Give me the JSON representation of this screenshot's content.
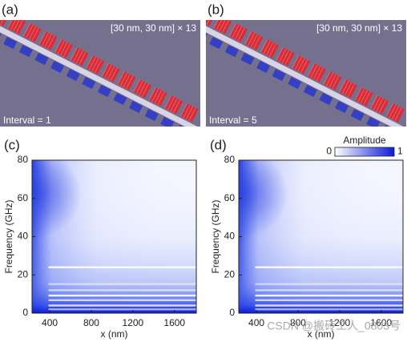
{
  "panels": [
    {
      "label": "(a)",
      "annotation": "[30 nm, 30 nm] × 13",
      "caption": "Interval = 1"
    },
    {
      "label": "(b)",
      "annotation": "[30 nm, 30 nm] × 13",
      "caption": "Interval = 5"
    }
  ],
  "chart_data": [
    {
      "type": "heatmap",
      "label": "(c)",
      "x_label": "x (nm)",
      "y_label": "Frequency (GHz)",
      "xlim": [
        230,
        1810
      ],
      "xticks": [
        400,
        800,
        1200,
        1600
      ],
      "ylim": [
        0,
        80
      ],
      "yticks": [
        0,
        20,
        40,
        60,
        80
      ]
    },
    {
      "type": "heatmap",
      "label": "(d)",
      "x_label": "x (nm)",
      "y_label": "Frequency (GHz)",
      "xlim": [
        230,
        1810
      ],
      "xticks": [
        400,
        800,
        1200,
        1600
      ],
      "ylim": [
        0,
        80
      ],
      "yticks": [
        0,
        20,
        40,
        60,
        80
      ]
    }
  ],
  "colorbar": {
    "title": "Amplitude",
    "lim": [
      0,
      1
    ],
    "ticks": [
      0,
      1
    ]
  },
  "watermark": "CSDN @搬砖工人_0803号"
}
